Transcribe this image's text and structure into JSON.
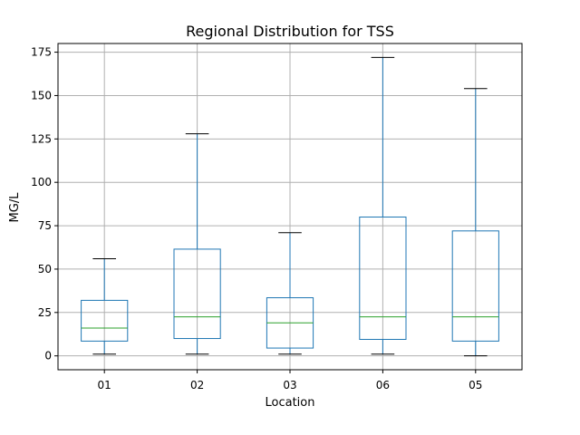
{
  "chart_data": {
    "type": "box",
    "title": "Regional Distribution for TSS",
    "xlabel": "Location",
    "ylabel": "MG/L",
    "ylim": [
      -8,
      180
    ],
    "yticks": [
      0,
      25,
      50,
      75,
      100,
      125,
      150,
      175
    ],
    "grid": true,
    "categories": [
      "01",
      "02",
      "03",
      "06",
      "05"
    ],
    "boxes": [
      {
        "category": "01",
        "whislo": 1,
        "q1": 8.5,
        "med": 16,
        "q3": 32,
        "whishi": 56
      },
      {
        "category": "02",
        "whislo": 1,
        "q1": 10,
        "med": 22.5,
        "q3": 61.5,
        "whishi": 128
      },
      {
        "category": "03",
        "whislo": 1,
        "q1": 4.5,
        "med": 19,
        "q3": 33.5,
        "whishi": 71
      },
      {
        "category": "06",
        "whislo": 1,
        "q1": 9.5,
        "med": 22.5,
        "q3": 80,
        "whishi": 172
      },
      {
        "category": "05",
        "whislo": 0,
        "q1": 8.5,
        "med": 22.5,
        "q3": 72,
        "whishi": 154
      }
    ],
    "colors": {
      "box": "#1f77b4",
      "median": "#2ca02c",
      "whisker_cap": "#000000",
      "grid": "#b0b0b0"
    }
  }
}
